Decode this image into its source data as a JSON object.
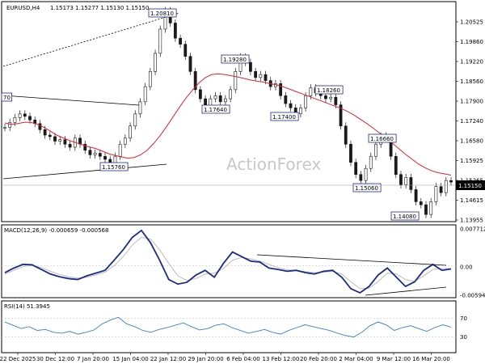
{
  "header": {
    "symbol": "EURUSD,H4",
    "ohlc": "1.15173 1.15277 1.15130 1.15150"
  },
  "watermark": "ActionForex",
  "current_price_label": "1.15150",
  "colors": {
    "candles": "#1a1a1a",
    "sma": "#e0242c",
    "macd_line": "#1c2a8a",
    "macd_signal": "#bcbcbc",
    "rsi": "#3a7dd8",
    "level_box": "#1c2a8a",
    "current_price_box": "#000000"
  },
  "chart_data": [
    {
      "type": "line",
      "panel": "price",
      "series": [
        {
          "values": [
            1.1695,
            1.1712,
            1.1728,
            1.174,
            1.1732,
            1.172,
            1.1708,
            1.1688,
            1.167,
            1.1665,
            1.165,
            1.1655,
            1.164,
            1.163,
            1.166,
            1.164,
            1.162,
            1.1605,
            1.161,
            1.16,
            1.159,
            1.1576,
            1.16,
            1.164,
            1.166,
            1.17,
            1.174,
            1.178,
            1.183,
            1.188,
            1.194,
            1.202,
            1.2081,
            1.204,
            1.199,
            1.197,
            1.193,
            1.188,
            1.182,
            1.179,
            1.1764,
            1.179,
            1.18,
            1.178,
            1.179,
            1.182,
            1.188,
            1.1928,
            1.191,
            1.188,
            1.186,
            1.187,
            1.185,
            1.183,
            1.184,
            1.18,
            1.1774,
            1.176,
            1.174,
            1.176,
            1.18,
            1.1826,
            1.181,
            1.18,
            1.179,
            1.1795,
            1.177,
            1.17,
            1.164,
            1.158,
            1.154,
            1.152,
            1.156,
            1.16,
            1.164,
            1.1667,
            1.166,
            1.16,
            1.154,
            1.1506,
            1.153,
            1.149,
            1.145,
            1.144,
            1.1408,
            1.145,
            1.15,
            1.148,
            1.152,
            1.1515
          ]
        },
        {
          "values": [
            1.171,
            1.1705,
            1.1708,
            1.1712,
            1.1712,
            1.1706,
            1.1696,
            1.1684,
            1.167,
            1.1661,
            1.1652,
            1.1645,
            1.1638,
            1.1631,
            1.1626,
            1.1618,
            1.1609,
            1.1603,
            1.1598,
            1.1594,
            1.1596,
            1.1605,
            1.162,
            1.1642,
            1.1668,
            1.1698,
            1.173,
            1.1762,
            1.1792,
            1.1818,
            1.1842,
            1.186,
            1.187,
            1.1872,
            1.187,
            1.1866,
            1.1862,
            1.1857,
            1.1852,
            1.1848,
            1.1845,
            1.184,
            1.1836,
            1.183,
            1.1822,
            1.1814,
            1.1806,
            1.1798,
            1.179,
            1.1782,
            1.1774,
            1.1766,
            1.1758,
            1.1748,
            1.1736,
            1.1722,
            1.1708,
            1.1692,
            1.1676,
            1.166,
            1.1642,
            1.1624,
            1.1606,
            1.159,
            1.1574,
            1.1562,
            1.1552,
            1.1546,
            1.1542,
            1.1538
          ]
        }
      ],
      "levels": [
        {
          "label": "1.20810",
          "value": 1.2081
        },
        {
          "label": "1.19280",
          "value": 1.1928
        },
        {
          "label": "1.17640",
          "value": 1.1764
        },
        {
          "label": "1.17400",
          "value": 1.174
        },
        {
          "label": "1.18260",
          "value": 1.1826
        },
        {
          "label": "1.16660",
          "value": 1.1666
        },
        {
          "label": "1.15060",
          "value": 1.1506
        },
        {
          "label": "1.14080",
          "value": 1.1408
        },
        {
          "label": "1.15760",
          "value": 1.1576
        },
        {
          "label": "70",
          "value": 1.177
        }
      ],
      "yticks": [
        "1.20525",
        "1.19860",
        "1.19220",
        "1.18560",
        "1.17900",
        "1.17240",
        "1.16580",
        "1.15925",
        "1.15265",
        "1.14615",
        "1.13955"
      ],
      "ylim": [
        1.1395,
        1.21
      ]
    },
    {
      "type": "line",
      "panel": "macd",
      "title": "MACD(12,26,9) -0.000659 -0.000568",
      "series": [
        {
          "values": [
            -0.0015,
            -0.0005,
            0.0003,
            0.0002,
            -0.0008,
            -0.0018,
            -0.0024,
            -0.0028,
            -0.003,
            -0.0022,
            -0.0016,
            -0.001,
            0.0012,
            0.0035,
            0.0062,
            0.0077,
            0.005,
            0.0012,
            -0.003,
            -0.004,
            -0.0036,
            -0.002,
            -0.001,
            -0.0025,
            0.0005,
            0.003,
            0.002,
            0.001,
            0.0008,
            -0.0005,
            -0.0008,
            -0.0012,
            -0.001,
            -0.0015,
            -0.0018,
            -0.0012,
            -0.001,
            -0.0025,
            -0.005,
            -0.0059,
            -0.0045,
            -0.002,
            -0.0005,
            -0.0025,
            -0.0045,
            -0.0035,
            -0.001,
            0.0003,
            -0.001,
            -0.0007
          ]
        },
        {
          "values": [
            -0.0018,
            -0.001,
            -0.0002,
            0.0001,
            -0.0004,
            -0.0012,
            -0.0019,
            -0.0024,
            -0.0027,
            -0.0025,
            -0.002,
            -0.0014,
            0.0,
            0.002,
            0.0045,
            0.0062,
            0.0058,
            0.0035,
            0.0005,
            -0.0022,
            -0.0032,
            -0.0028,
            -0.0018,
            -0.0016,
            -0.0006,
            0.0012,
            0.0018,
            0.0015,
            0.001,
            0.0003,
            -0.0004,
            -0.0009,
            -0.001,
            -0.0013,
            -0.0015,
            -0.0014,
            -0.0012,
            -0.0018,
            -0.0035,
            -0.005,
            -0.0049,
            -0.0034,
            -0.0016,
            -0.0018,
            -0.003,
            -0.0034,
            -0.0022,
            -0.0008,
            -0.0006,
            -0.0006
          ]
        }
      ],
      "yticks": [
        "0.007712",
        "0.00",
        "-0.005944"
      ],
      "ylim": [
        -0.0066,
        0.0082
      ]
    },
    {
      "type": "line",
      "panel": "rsi",
      "title": "RSI(14) 51.3945",
      "series": [
        {
          "values": [
            62,
            55,
            48,
            52,
            44,
            46,
            40,
            38,
            42,
            36,
            40,
            45,
            58,
            66,
            72,
            58,
            52,
            44,
            40,
            46,
            50,
            55,
            60,
            52,
            45,
            48,
            55,
            58,
            50,
            44,
            38,
            42,
            46,
            40,
            36,
            44,
            50,
            56,
            52,
            48,
            44,
            38,
            33,
            30,
            40,
            54,
            62,
            56,
            44,
            50,
            54,
            48,
            42,
            50,
            56,
            51
          ]
        }
      ],
      "yticks": [
        "70",
        "30"
      ],
      "ylim": [
        0,
        100
      ]
    }
  ],
  "xticks": [
    "22 Dec 2025",
    "30 Dec 12:00",
    "7 Jan 20:00",
    "15 Jan 04:00",
    "22 Jan 12:00",
    "29 Jan 20:00",
    "6 Feb 04:00",
    "13 Feb 12:00",
    "20 Feb 20:00",
    "2 Mar 04:00",
    "9 Mar 12:00",
    "16 Mar 20:00"
  ]
}
